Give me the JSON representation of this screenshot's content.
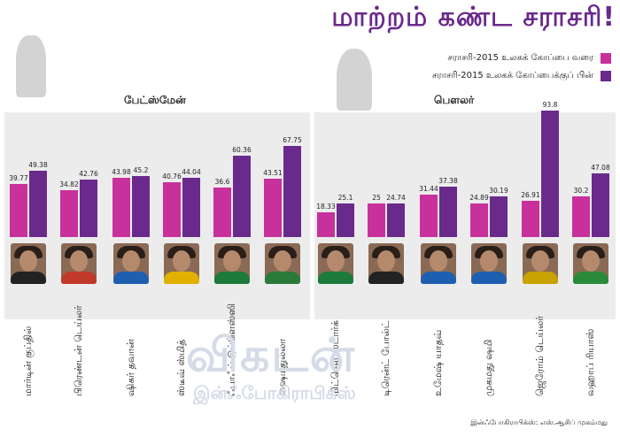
{
  "title": "மாற்றம் கண்ட சராசரி!",
  "legend": [
    {
      "label": "சராசரி-2015 உலகக் கோப்பை வரை",
      "color": "#c8319b"
    },
    {
      "label": "சராசரி-2015 உலகக் கோப்பைக்குப் பின்",
      "color": "#6a2a8c"
    }
  ],
  "sections": {
    "batsmen": "பேட்ஸ்மேன்",
    "bowlers": "பௌலர்"
  },
  "watermark": {
    "main": "விகடன்",
    "sub": "இன்ஃபோகிராபிக்ஸ்"
  },
  "credit": "இன்ஃபோகிராபிக்ஸ்: எஸ்.ஆசிப் முகம்மது",
  "chart_data": {
    "type": "bar",
    "title": "மாற்றம் கண்ட சராசரி!",
    "categories": [
      "மார்டின் குப்தில்",
      "பிரெண்டன் டெய்லர்",
      "ஷிகர் தவான்",
      "ஸ்டீவ் ஸ்மித்",
      "ஃபாஃப் டுப்ளெஸ்ஸி",
      "ஷைமதுல்லா",
      "மிட்செல் ஸ்டார்க்",
      "டிரென்ட் போல்ட்",
      "உமேஷ் யாதவ்",
      "முகமது ஷமி",
      "ஜெரோம் டெய்லர்",
      "வஹாப் ரியாஸ்"
    ],
    "groups": [
      {
        "label": "பேட்ஸ்மேன்",
        "count": 6
      },
      {
        "label": "பௌலர்",
        "count": 6
      }
    ],
    "series": [
      {
        "name": "சராசரி-2015 உலகக் கோப்பை வரை",
        "values": [
          39.77,
          34.82,
          43.98,
          40.76,
          36.6,
          43.51,
          18.33,
          25,
          31.44,
          24.89,
          26.91,
          30.2
        ]
      },
      {
        "name": "சராசரி-2015 உலகக் கோப்பைக்குப் பின்",
        "values": [
          49.38,
          42.76,
          45.2,
          44.04,
          60.36,
          67.75,
          25.1,
          24.74,
          37.38,
          30.19,
          93.8,
          47.08
        ]
      }
    ],
    "labels": [
      [
        "39.77",
        "34.82",
        "43.98",
        "40.76",
        "36.6",
        "43.51",
        "18.33",
        "25",
        "31.44",
        "24.89",
        "26.91",
        "30.2"
      ],
      [
        "49.38",
        "42.76",
        "45.2",
        "44.04",
        "60.36",
        "67.75",
        "25.1",
        "24.74",
        "37.38",
        "30.19",
        "93.8",
        "47.08"
      ]
    ],
    "ylim": [
      0,
      100
    ],
    "grid": false,
    "legend_position": "top-right"
  }
}
